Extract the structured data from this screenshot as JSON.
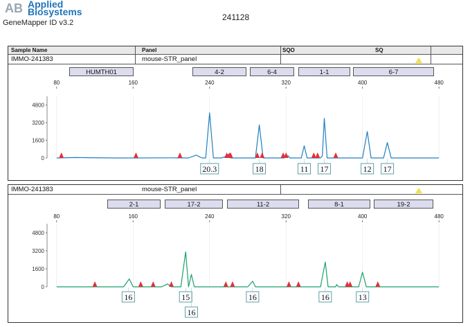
{
  "header": {
    "brand_line1": "Applied",
    "brand_line2": "Biosystems",
    "app_name": "GeneMapper ID v3.2",
    "run_id": "241128"
  },
  "table_headers": {
    "sample_name": "Sample Name",
    "panel": "Panel",
    "sqo": "SQO",
    "sq": "SQ"
  },
  "colors": {
    "blue_trace": "#1f7fc0",
    "green_trace": "#1aa06a",
    "size_marker": "#e0303a",
    "brand": "#1f74b8"
  },
  "chart_data": [
    {
      "type": "line",
      "title": "",
      "sample_name": "IMMO-241383",
      "panel": "mouse-STR_panel",
      "markers": [
        "HUMTH01",
        "4-2",
        "6-4",
        "1-1",
        "6-7"
      ],
      "xticks": [
        "80",
        "160",
        "240",
        "320",
        "400",
        "480"
      ],
      "yticks": [
        "4800",
        "3200",
        "1600",
        "0"
      ],
      "xlim": [
        70,
        490
      ],
      "ylim": [
        0,
        5600
      ],
      "series": [
        {
          "values": [
            [
              80,
              0
            ],
            [
              100,
              40
            ],
            [
              140,
              0
            ],
            [
              160,
              0
            ],
            [
              200,
              10
            ],
            [
              218,
              0
            ],
            [
              226,
              260
            ],
            [
              232,
              0
            ],
            [
              236,
              0
            ],
            [
              240,
              4100
            ],
            [
              244,
              0
            ],
            [
              252,
              0
            ],
            [
              258,
              150
            ],
            [
              260,
              350
            ],
            [
              262,
              0
            ],
            [
              288,
              0
            ],
            [
              292,
              3000
            ],
            [
              296,
              0
            ],
            [
              318,
              0
            ],
            [
              322,
              200
            ],
            [
              324,
              0
            ],
            [
              336,
              0
            ],
            [
              339,
              1100
            ],
            [
              342,
              0
            ],
            [
              356,
              0
            ],
            [
              358,
              200
            ],
            [
              360,
              3600
            ],
            [
              363,
              0
            ],
            [
              400,
              0
            ],
            [
              405,
              2400
            ],
            [
              409,
              0
            ],
            [
              422,
              0
            ],
            [
              426,
              1400
            ],
            [
              430,
              0
            ],
            [
              480,
              0
            ]
          ]
        }
      ],
      "size_standard_peaks_x": [
        85,
        163,
        209,
        258,
        261,
        262,
        290,
        295,
        317,
        320,
        349,
        353,
        372
      ],
      "alleles": [
        {
          "label": "20.3",
          "x": 240
        },
        {
          "label": "18",
          "x": 292
        },
        {
          "label": "11",
          "x": 339
        },
        {
          "label": "17",
          "x": 360
        },
        {
          "label": "12",
          "x": 405
        },
        {
          "label": "17",
          "x": 426
        }
      ]
    },
    {
      "type": "line",
      "title": "",
      "sample_name": "IMMO-241383",
      "panel": "mouse-STR_panel",
      "markers": [
        "2-1",
        "17-2",
        "11-2",
        "8-1",
        "19-2"
      ],
      "xticks": [
        "80",
        "160",
        "240",
        "320",
        "400",
        "480"
      ],
      "yticks": [
        "4800",
        "3200",
        "1600",
        "0"
      ],
      "xlim": [
        70,
        490
      ],
      "ylim": [
        0,
        5600
      ],
      "series": [
        {
          "values": [
            [
              80,
              0
            ],
            [
              120,
              0
            ],
            [
              150,
              0
            ],
            [
              156,
              700
            ],
            [
              160,
              0
            ],
            [
              190,
              0
            ],
            [
              196,
              250
            ],
            [
              200,
              0
            ],
            [
              210,
              0
            ],
            [
              215,
              3100
            ],
            [
              218,
              0
            ],
            [
              221,
              1100
            ],
            [
              224,
              0
            ],
            [
              280,
              0
            ],
            [
              285,
              500
            ],
            [
              288,
              0
            ],
            [
              345,
              0
            ],
            [
              356,
              0
            ],
            [
              361,
              2200
            ],
            [
              364,
              0
            ],
            [
              372,
              0
            ],
            [
              373,
              200
            ],
            [
              375,
              0
            ],
            [
              396,
              0
            ],
            [
              400,
              1300
            ],
            [
              404,
              0
            ],
            [
              480,
              0
            ]
          ]
        }
      ],
      "size_standard_peaks_x": [
        120,
        168,
        181,
        200,
        257,
        264,
        323,
        333,
        384,
        387,
        416
      ],
      "alleles": [
        {
          "label": "16",
          "x": 155
        },
        {
          "label": "15",
          "x": 215
        },
        {
          "label": "16",
          "x": 221,
          "row": 2
        },
        {
          "label": "16",
          "x": 285
        },
        {
          "label": "16",
          "x": 361
        },
        {
          "label": "13",
          "x": 400
        }
      ]
    }
  ]
}
